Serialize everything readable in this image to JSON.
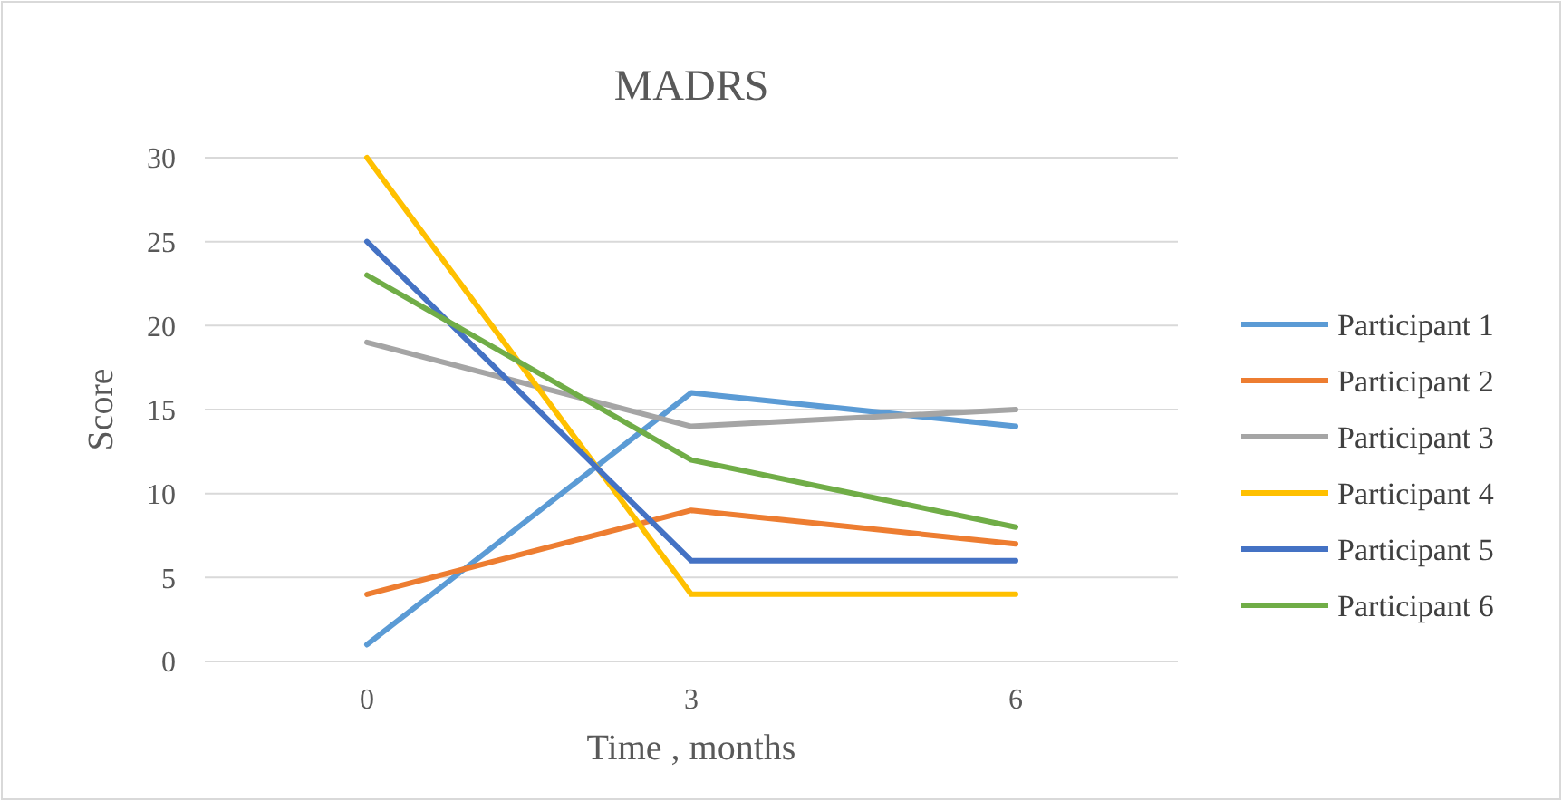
{
  "chart_data": {
    "type": "line",
    "title": "MADRS",
    "xlabel": "Time , months",
    "ylabel": "Score",
    "categories": [
      "0",
      "3",
      "6"
    ],
    "series": [
      {
        "name": "Participant 1",
        "color": "#5b9bd5",
        "values": [
          1,
          16,
          14
        ]
      },
      {
        "name": "Participant 2",
        "color": "#ed7d31",
        "values": [
          4,
          9,
          7
        ]
      },
      {
        "name": "Participant 3",
        "color": "#a5a5a5",
        "values": [
          19,
          14,
          15
        ]
      },
      {
        "name": "Participant 4",
        "color": "#ffc000",
        "values": [
          30,
          4,
          4
        ]
      },
      {
        "name": "Participant 5",
        "color": "#4472c4",
        "values": [
          25,
          6,
          6
        ]
      },
      {
        "name": "Participant 6",
        "color": "#70ad47",
        "values": [
          23,
          12,
          8
        ]
      }
    ],
    "ylim": [
      0,
      30
    ],
    "yticks": [
      0,
      5,
      10,
      15,
      20,
      25,
      30
    ],
    "grid": "y",
    "legend": "right",
    "marker": "none",
    "line_style": "solid"
  }
}
